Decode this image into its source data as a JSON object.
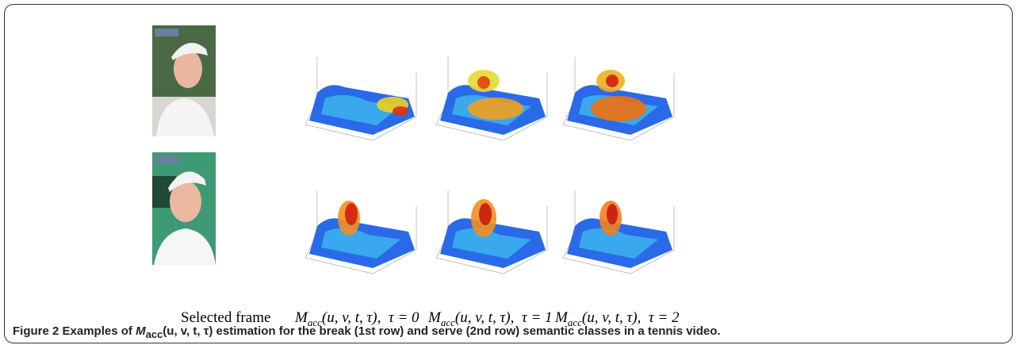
{
  "figure": {
    "columns": [
      {
        "text": "Selected frame"
      },
      {
        "symbol": "M",
        "subscript": "acc",
        "args": "(u, v, t, τ),",
        "condition": "τ = 0"
      },
      {
        "symbol": "M",
        "subscript": "acc",
        "args": "(u, v, t, τ),",
        "condition": "τ = 1"
      },
      {
        "symbol": "M",
        "subscript": "acc",
        "args": "(u, v, t, τ),",
        "condition": "τ = 2"
      }
    ],
    "caption": {
      "label": "Figure 2",
      "before": "Examples of ",
      "symbol": "M",
      "subscript": "acc",
      "args": "(u, v, t, τ)",
      "after": " estimation for the break (1st row) and serve (2nd row) semantic classes in a tennis video."
    }
  }
}
